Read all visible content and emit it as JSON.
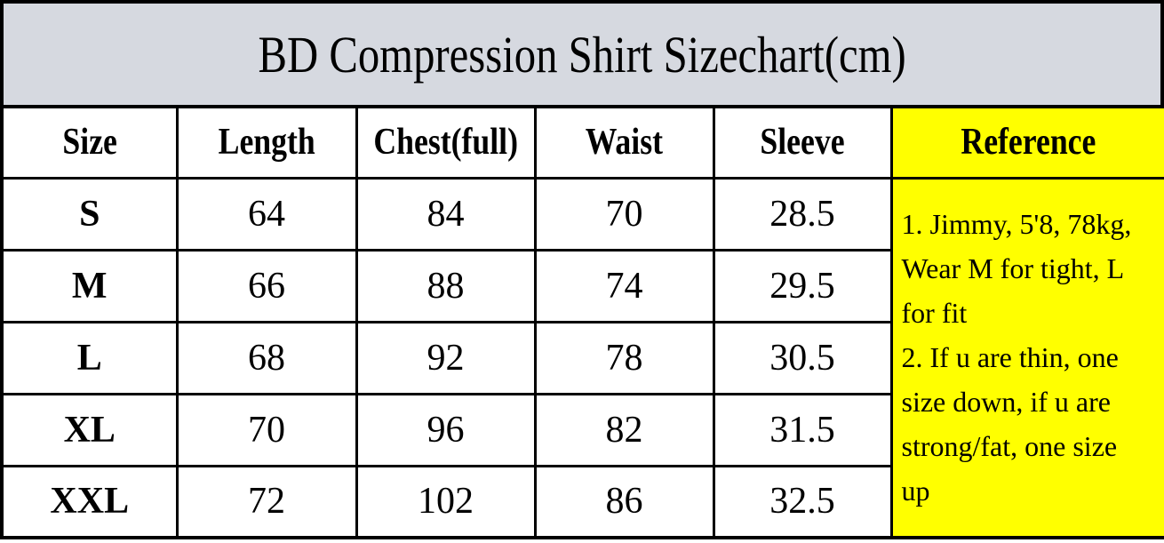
{
  "title": "BD Compression Shirt Sizechart(cm)",
  "colors": {
    "title_bar_bg": "#d6d9e0",
    "reference_bg": "#ffff00",
    "border": "#000000",
    "text": "#000000"
  },
  "table": {
    "columns": [
      "Size",
      "Length",
      "Chest(full)",
      "Waist",
      "Sleeve",
      "Reference"
    ],
    "rows": [
      {
        "size": "S",
        "values": [
          "64",
          "84",
          "70",
          "28.5"
        ]
      },
      {
        "size": "M",
        "values": [
          "66",
          "88",
          "74",
          "29.5"
        ]
      },
      {
        "size": "L",
        "values": [
          "68",
          "92",
          "78",
          "30.5"
        ]
      },
      {
        "size": "XL",
        "values": [
          "70",
          "96",
          "82",
          "31.5"
        ]
      },
      {
        "size": "XXL",
        "values": [
          "72",
          "102",
          "86",
          "32.5"
        ]
      }
    ]
  },
  "reference": {
    "notes": [
      "1. Jimmy, 5'8, 78kg, Wear M for tight, L for fit",
      "2. If u are thin, one size down, if u are strong/fat, one size up"
    ],
    "lines": [
      "1. Jimmy, 5'8, 78kg,",
      "Wear M for tight, L",
      "for fit",
      "2. If u are thin, one",
      "size down, if u are",
      "strong/fat, one size",
      "up"
    ]
  }
}
